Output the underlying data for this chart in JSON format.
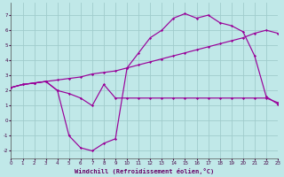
{
  "background_color": "#c0e8e8",
  "grid_color": "#a0cccc",
  "line_color": "#990099",
  "xlabel": "Windchill (Refroidissement éolien,°C)",
  "xlim": [
    0,
    23
  ],
  "ylim": [
    -2.5,
    7.8
  ],
  "xticks": [
    0,
    1,
    2,
    3,
    4,
    5,
    6,
    7,
    8,
    9,
    10,
    11,
    12,
    13,
    14,
    15,
    16,
    17,
    18,
    19,
    20,
    21,
    22,
    23
  ],
  "yticks": [
    -2,
    -1,
    0,
    1,
    2,
    3,
    4,
    5,
    6,
    7
  ],
  "line1_x": [
    0,
    1,
    2,
    3,
    4,
    5,
    6,
    7,
    8,
    9,
    10,
    11,
    12,
    13,
    14,
    15,
    16,
    17,
    18,
    19,
    20,
    21,
    22,
    23
  ],
  "line1_y": [
    2.2,
    2.4,
    2.5,
    2.6,
    2.0,
    1.8,
    1.5,
    1.0,
    2.4,
    1.5,
    1.5,
    1.5,
    1.5,
    1.5,
    1.5,
    1.5,
    1.5,
    1.5,
    1.5,
    1.5,
    1.5,
    1.5,
    1.5,
    1.2
  ],
  "line2_x": [
    0,
    1,
    2,
    3,
    4,
    5,
    6,
    7,
    8,
    9,
    10,
    11,
    12,
    13,
    14,
    15,
    16,
    17,
    18,
    19,
    20,
    21,
    22,
    23
  ],
  "line2_y": [
    2.2,
    2.4,
    2.5,
    2.6,
    2.0,
    -1.0,
    -1.8,
    -2.0,
    -1.5,
    -1.2,
    3.5,
    4.5,
    5.5,
    6.0,
    6.8,
    7.1,
    6.8,
    7.0,
    6.5,
    6.3,
    5.9,
    4.3,
    1.6,
    1.1
  ],
  "line3_x": [
    0,
    1,
    2,
    3,
    4,
    5,
    6,
    7,
    8,
    9,
    10,
    11,
    12,
    13,
    14,
    15,
    16,
    17,
    18,
    19,
    20,
    21,
    22,
    23
  ],
  "line3_y": [
    2.2,
    2.4,
    2.5,
    2.6,
    2.7,
    2.8,
    2.9,
    3.1,
    3.2,
    3.3,
    3.5,
    3.7,
    3.9,
    4.1,
    4.3,
    4.5,
    4.7,
    4.9,
    5.1,
    5.3,
    5.5,
    5.8,
    6.0,
    5.8
  ]
}
